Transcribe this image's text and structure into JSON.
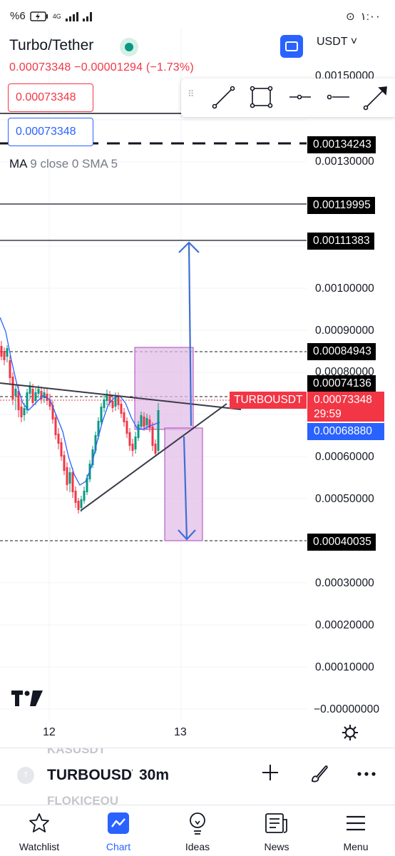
{
  "status_bar": {
    "battery": "%6",
    "network": "4G",
    "time": "١:٠٠"
  },
  "header": {
    "title": "Turbo/Tether",
    "price_change": "0.00073348  −0.00001294 (−1.73%)",
    "currency": "USDT ˅",
    "sell_price": "0.00073348",
    "buy_price": "0.00073348"
  },
  "indicator": {
    "name": "MA",
    "params": "9 close 0 SMA 5"
  },
  "drawing_tools": [
    "drag-handle",
    "trend-line",
    "rectangle",
    "horizontal-ray",
    "horizontal-line",
    "arrow-line"
  ],
  "axis": {
    "ticks": [
      "0.00150000",
      "0.00130000",
      "0.00100000",
      "0.00090000",
      "0.00080000",
      "0.00060000",
      "0.00050000",
      "0.00030000",
      "0.00020000",
      "0.00010000",
      "−0.00000000"
    ],
    "tags": {
      "level_134": "0.00134243",
      "level_120": "0.00119995",
      "level_111": "0.00111383",
      "level_085": "0.00084943",
      "level_074": "0.00074136",
      "level_040": "0.00040035"
    },
    "current_price": "0.00073348",
    "countdown": "29:59",
    "buy_level": "0.00068880",
    "x_labels": [
      "12",
      "13"
    ]
  },
  "symbol_label": "TURBOUSDT",
  "symbol_bar": {
    "ghost_top": "KASUSDT",
    "name": "TURBOUSDT",
    "timeframe": "30m",
    "ghost_bottom": "FLOKICEOU"
  },
  "nav": {
    "watchlist": "Watchlist",
    "chart": "Chart",
    "ideas": "Ideas",
    "news": "News",
    "menu": "Menu"
  },
  "colors": {
    "up": "#089981",
    "down": "#f23645",
    "accent": "#2962ff",
    "zone": "#e1bee7"
  }
}
